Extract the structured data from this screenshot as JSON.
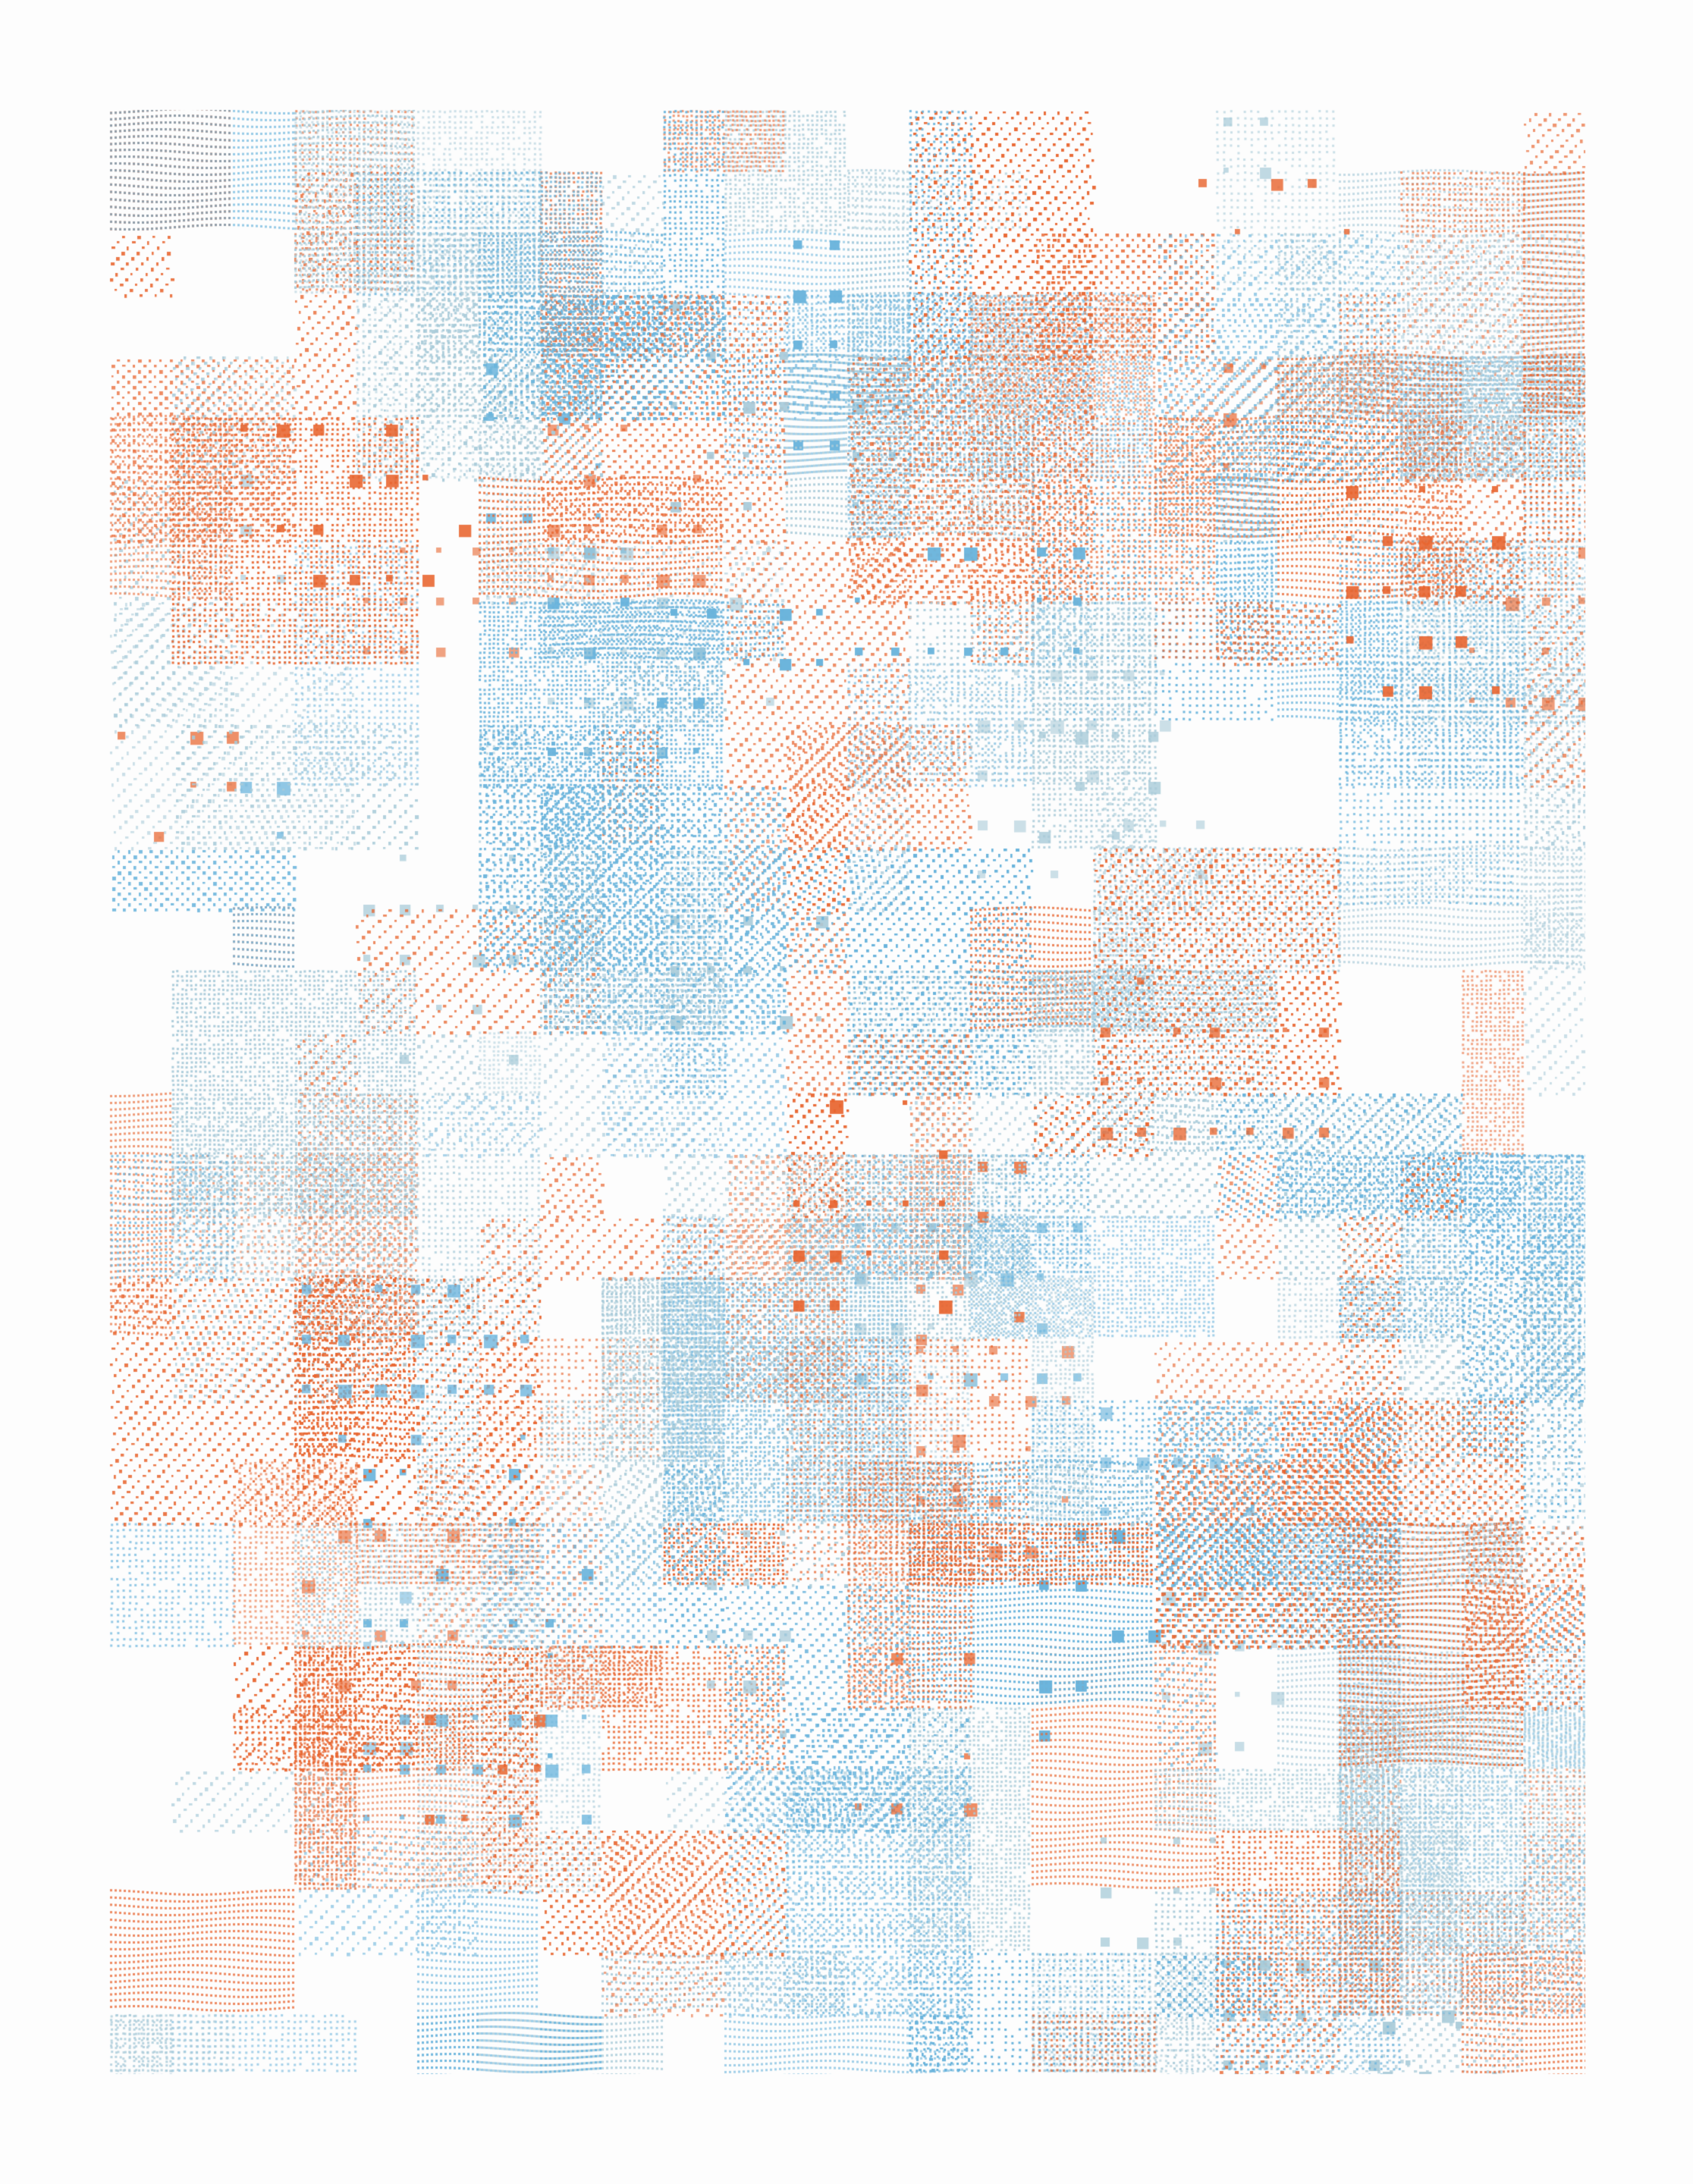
{
  "artwork": {
    "kind": "generative dot-pattern composition",
    "background_color": "#fdfdfd",
    "palette": {
      "orange": "#e8652f",
      "blue": "#6ab4dc",
      "pale_blue": "#a9cbd9"
    },
    "pattern_types": [
      "dense-grid",
      "diagonal-hatch",
      "sparse-squares",
      "wavy-rows"
    ]
  }
}
